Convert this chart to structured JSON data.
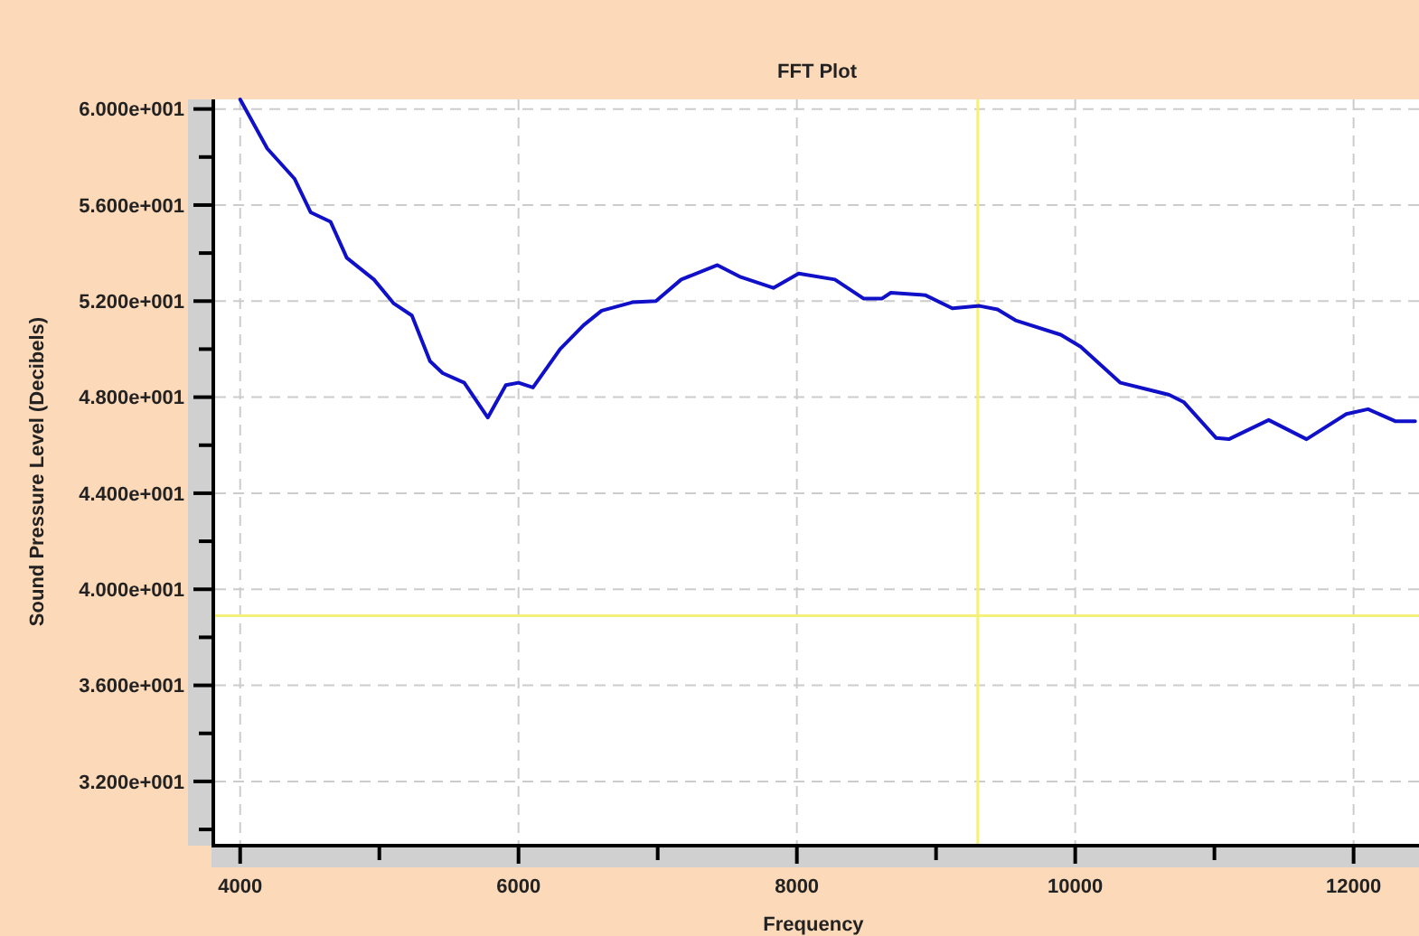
{
  "chart_data": {
    "type": "line",
    "title": "FFT Plot",
    "xlabel": "Frequency",
    "ylabel": "Sound Pressure Level (Decibels)",
    "x": [
      4000,
      4195,
      4390,
      4506,
      4650,
      4766,
      4961,
      5104,
      5234,
      5364,
      5455,
      5610,
      5779,
      5909,
      6000,
      6104,
      6299,
      6468,
      6597,
      6818,
      6987,
      7169,
      7429,
      7597,
      7831,
      8013,
      8273,
      8481,
      8610,
      8675,
      8922,
      9117,
      9312,
      9442,
      9571,
      9896,
      10039,
      10325,
      10675,
      10779,
      11013,
      11104,
      11390,
      11662,
      11948,
      12104,
      12299,
      12442
    ],
    "series": [
      {
        "color": "#1010c8",
        "values": [
          60.4,
          58.35,
          57.1,
          55.7,
          55.3,
          53.8,
          52.9,
          51.9,
          51.4,
          49.5,
          49.0,
          48.6,
          47.15,
          48.5,
          48.6,
          48.4,
          50.0,
          51.0,
          51.6,
          51.95,
          52.0,
          52.9,
          53.5,
          53.0,
          52.55,
          53.15,
          52.9,
          52.1,
          52.1,
          52.35,
          52.25,
          51.7,
          51.8,
          51.65,
          51.2,
          50.6,
          50.1,
          48.6,
          48.1,
          47.8,
          46.3,
          46.25,
          47.05,
          46.25,
          47.3,
          47.5,
          47.0,
          47.0
        ]
      }
    ],
    "xlim": [
      3820,
      12470
    ],
    "ylim": [
      29.4,
      60.4
    ],
    "xticks": [
      4000,
      {
        "value": 5000,
        "label": null
      },
      6000,
      {
        "value": 7000,
        "label": null
      },
      8000,
      {
        "value": 9000,
        "label": null
      },
      10000,
      {
        "value": 11000,
        "label": null
      },
      12000
    ],
    "yticks": [
      {
        "value": 30,
        "label": null
      },
      {
        "value": 32,
        "label": "3.200e+001"
      },
      {
        "value": 34,
        "label": null
      },
      {
        "value": 36,
        "label": "3.600e+001"
      },
      {
        "value": 38,
        "label": null
      },
      {
        "value": 40,
        "label": "4.000e+001"
      },
      {
        "value": 42,
        "label": null
      },
      {
        "value": 44,
        "label": "4.400e+001"
      },
      {
        "value": 46,
        "label": null
      },
      {
        "value": 48,
        "label": "4.800e+001"
      },
      {
        "value": 50,
        "label": null
      },
      {
        "value": 52,
        "label": "5.200e+001"
      },
      {
        "value": 54,
        "label": null
      },
      {
        "value": 56,
        "label": "5.600e+001"
      },
      {
        "value": 58,
        "label": null
      },
      {
        "value": 60,
        "label": "6.000e+001"
      }
    ],
    "grid": true,
    "marker": "none",
    "line_style": "solid",
    "ref_lines": [
      {
        "axis": "x",
        "value": 9300,
        "color": "#f5f07a"
      },
      {
        "axis": "y",
        "value": 38.9,
        "color": "#f5f07a"
      }
    ]
  }
}
